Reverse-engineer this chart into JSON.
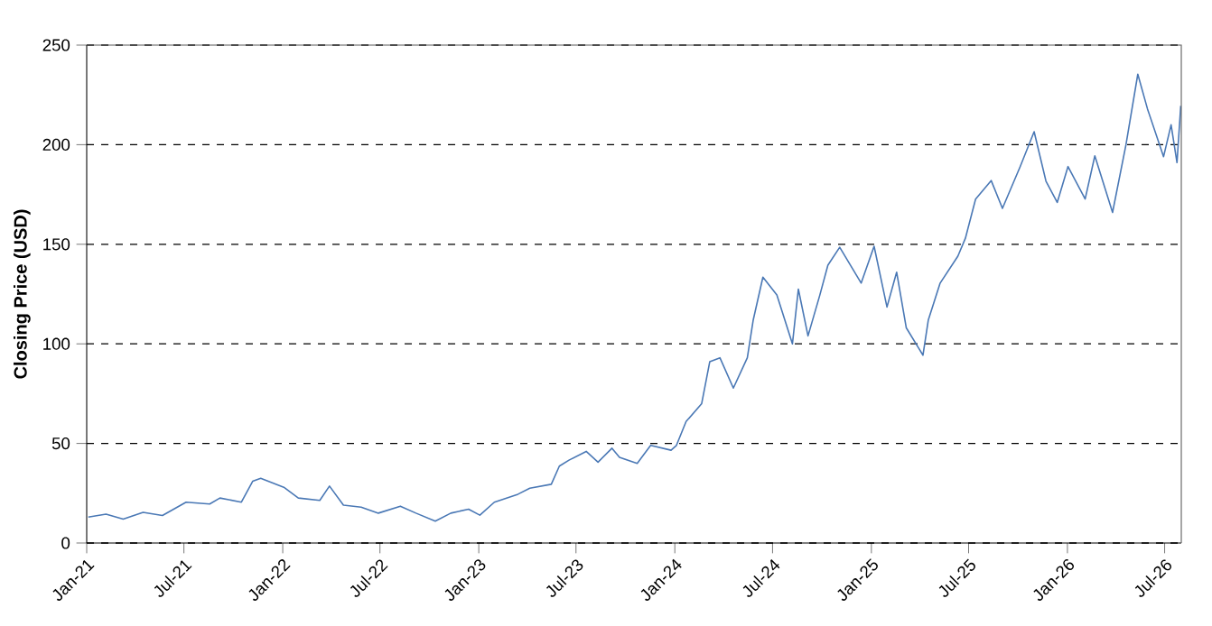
{
  "chart_data": {
    "type": "line",
    "ylabel": "Closing Price (USD)",
    "x": [
      "2021-01-04",
      "2021-02-06",
      "2021-03-10",
      "2021-04-16",
      "2021-05-22",
      "2021-07-05",
      "2021-08-18",
      "2021-09-06",
      "2021-10-16",
      "2021-11-06",
      "2021-11-21",
      "2022-01-03",
      "2022-01-30",
      "2022-03-11",
      "2022-03-29",
      "2022-04-24",
      "2022-05-27",
      "2022-06-28",
      "2022-08-08",
      "2022-09-06",
      "2022-10-12",
      "2022-11-10",
      "2022-12-13",
      "2023-01-03",
      "2023-01-30",
      "2023-03-15",
      "2023-04-06",
      "2023-05-16",
      "2023-05-31",
      "2023-06-18",
      "2023-07-20",
      "2023-08-11",
      "2023-09-06",
      "2023-09-20",
      "2023-10-23",
      "2023-11-17",
      "2023-12-25",
      "2024-01-04",
      "2024-01-22",
      "2024-02-20",
      "2024-03-06",
      "2024-03-25",
      "2024-04-19",
      "2024-05-15",
      "2024-05-26",
      "2024-06-13",
      "2024-07-09",
      "2024-08-07",
      "2024-08-18",
      "2024-09-05",
      "2024-09-27",
      "2024-10-12",
      "2024-11-03",
      "2024-12-13",
      "2025-01-06",
      "2025-01-30",
      "2025-02-17",
      "2025-03-07",
      "2025-04-07",
      "2025-04-17",
      "2025-05-09",
      "2025-06-11",
      "2025-06-25",
      "2025-07-14",
      "2025-08-12",
      "2025-09-02",
      "2025-10-05",
      "2025-10-31",
      "2025-11-22",
      "2025-12-13",
      "2026-01-02",
      "2026-02-03",
      "2026-02-21",
      "2026-03-26",
      "2026-04-20",
      "2026-05-12",
      "2026-05-30",
      "2026-06-29",
      "2026-07-13",
      "2026-07-24",
      "2026-07-31"
    ],
    "series": [
      {
        "color": "#4a78b5",
        "values": [
          13,
          14.5,
          12,
          15.4,
          13.8,
          20.5,
          19.6,
          22.6,
          20.5,
          31,
          32.5,
          28,
          22.6,
          21.4,
          28.6,
          19,
          18,
          15,
          18.5,
          15,
          11,
          15,
          17,
          14,
          20.5,
          24.5,
          27.5,
          29.5,
          38.6,
          41.6,
          46,
          40.6,
          47.6,
          43,
          40,
          49,
          46.6,
          49,
          61,
          70,
          91,
          93,
          77.8,
          93,
          112,
          133.5,
          124.5,
          100,
          127.5,
          104,
          124.5,
          139.5,
          148.5,
          130.5,
          149,
          118.5,
          136,
          108,
          94.3,
          112,
          130.5,
          144,
          153,
          172.7,
          182,
          168,
          189,
          206.5,
          181.7,
          171,
          189,
          172.7,
          194.4,
          166,
          200,
          235.4,
          218,
          194,
          210,
          191,
          219.5
        ]
      }
    ],
    "xlim": [
      "2021-01-01",
      "2026-08-01"
    ],
    "xticks": [
      {
        "value": "2021-01-01",
        "label": "Jan-21"
      },
      {
        "value": "2021-07-01",
        "label": "Jul-21"
      },
      {
        "value": "2022-01-01",
        "label": "Jan-22"
      },
      {
        "value": "2022-07-01",
        "label": "Jul-22"
      },
      {
        "value": "2023-01-01",
        "label": "Jan-23"
      },
      {
        "value": "2023-07-01",
        "label": "Jul-23"
      },
      {
        "value": "2024-01-01",
        "label": "Jan-24"
      },
      {
        "value": "2024-07-01",
        "label": "Jul-24"
      },
      {
        "value": "2025-01-01",
        "label": "Jan-25"
      },
      {
        "value": "2025-07-01",
        "label": "Jul-25"
      },
      {
        "value": "2026-01-01",
        "label": "Jan-26"
      },
      {
        "value": "2026-07-01",
        "label": "Jul-26"
      }
    ],
    "ylim": [
      0,
      250
    ],
    "yticks": [
      0,
      50,
      100,
      150,
      200,
      250
    ],
    "grid": "y",
    "line_style": "solid",
    "marker": "none"
  }
}
